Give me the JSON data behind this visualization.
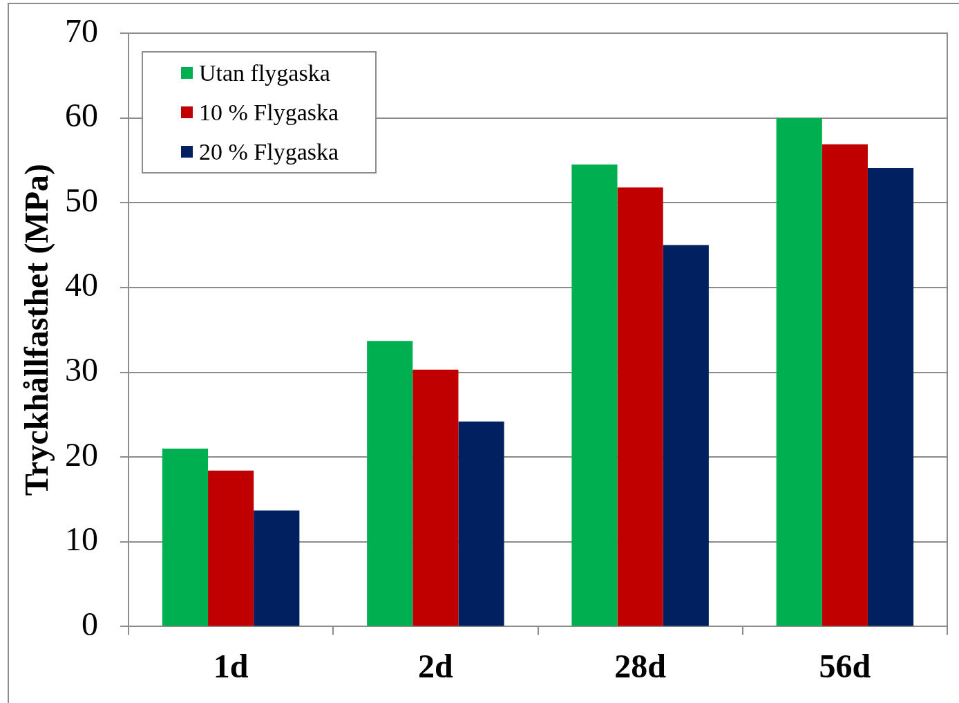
{
  "chart_data": {
    "type": "bar",
    "ylabel": "Tryckhållfasthet (MPa)",
    "categories": [
      "1d",
      "2d",
      "28d",
      "56d"
    ],
    "series": [
      {
        "name": "Utan flygaska",
        "color": "#00b050",
        "values": [
          21.0,
          33.7,
          54.5,
          60.0
        ]
      },
      {
        "name": "10 % Flygaska",
        "color": "#c00000",
        "values": [
          18.4,
          30.3,
          51.8,
          56.9
        ]
      },
      {
        "name": "20 % Flygaska",
        "color": "#002060",
        "values": [
          13.7,
          24.2,
          45.0,
          54.1
        ]
      }
    ],
    "ylim": [
      0,
      70
    ],
    "yticks": [
      0,
      10,
      20,
      30,
      40,
      50,
      60,
      70
    ],
    "grid": "y",
    "legend": "top left"
  }
}
